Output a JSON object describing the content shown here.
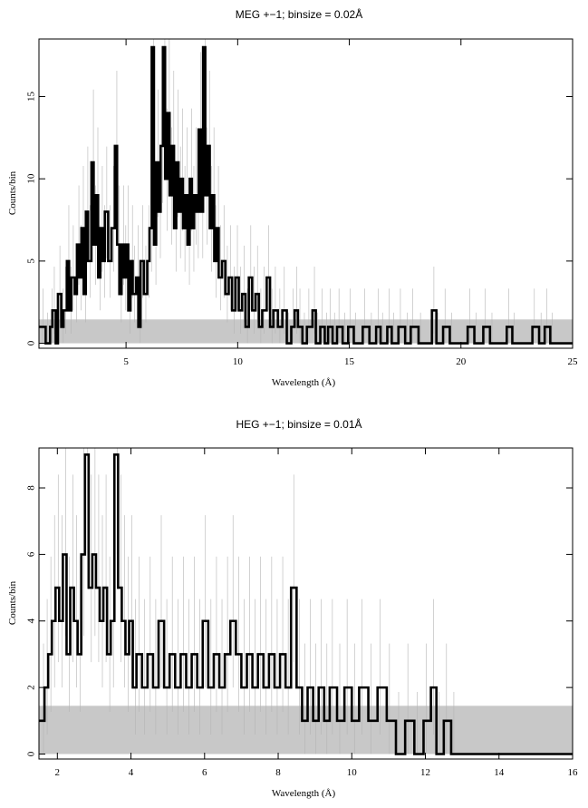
{
  "chart_data": [
    {
      "type": "line",
      "title": "MEG +−1; binsize = 0.02Å",
      "xlabel": "Wavelength (Å)",
      "ylabel": "Counts/bin",
      "xlim": [
        1.1,
        25
      ],
      "ylim": [
        -0.3,
        18.5
      ],
      "xticks": [
        5,
        10,
        15,
        20,
        25
      ],
      "yticks": [
        0,
        5,
        10,
        15
      ],
      "grid": false,
      "legend": "none",
      "colors": {
        "data": "#000000",
        "background": "#c8c8c8",
        "errors": "#b4b4b4"
      },
      "background_band": {
        "low": 0,
        "high": 1.45
      },
      "series": [
        {
          "values": [
            [
              1.2,
              1
            ],
            [
              1.4,
              0
            ],
            [
              1.6,
              1
            ],
            [
              1.7,
              2
            ],
            [
              1.85,
              0
            ],
            [
              1.95,
              3
            ],
            [
              2.1,
              1
            ],
            [
              2.2,
              2
            ],
            [
              2.35,
              5
            ],
            [
              2.45,
              2
            ],
            [
              2.55,
              4
            ],
            [
              2.7,
              3
            ],
            [
              2.8,
              6
            ],
            [
              2.9,
              4
            ],
            [
              3.0,
              7
            ],
            [
              3.1,
              3
            ],
            [
              3.2,
              8
            ],
            [
              3.3,
              5
            ],
            [
              3.45,
              11
            ],
            [
              3.55,
              6
            ],
            [
              3.65,
              9
            ],
            [
              3.75,
              4
            ],
            [
              3.85,
              7
            ],
            [
              3.95,
              5
            ],
            [
              4.05,
              8
            ],
            [
              4.2,
              5
            ],
            [
              4.35,
              7
            ],
            [
              4.5,
              12
            ],
            [
              4.6,
              6
            ],
            [
              4.7,
              3
            ],
            [
              4.8,
              6
            ],
            [
              4.9,
              4
            ],
            [
              5.0,
              6
            ],
            [
              5.1,
              2
            ],
            [
              5.2,
              5
            ],
            [
              5.3,
              3
            ],
            [
              5.45,
              4
            ],
            [
              5.55,
              1
            ],
            [
              5.65,
              5
            ],
            [
              5.8,
              3
            ],
            [
              5.95,
              5
            ],
            [
              6.05,
              7
            ],
            [
              6.15,
              18
            ],
            [
              6.25,
              6
            ],
            [
              6.35,
              11
            ],
            [
              6.45,
              8
            ],
            [
              6.55,
              12
            ],
            [
              6.65,
              18
            ],
            [
              6.75,
              10
            ],
            [
              6.85,
              14
            ],
            [
              6.95,
              9
            ],
            [
              7.05,
              12
            ],
            [
              7.15,
              7
            ],
            [
              7.25,
              11
            ],
            [
              7.35,
              8
            ],
            [
              7.45,
              10
            ],
            [
              7.55,
              7
            ],
            [
              7.65,
              9
            ],
            [
              7.75,
              6
            ],
            [
              7.85,
              10
            ],
            [
              7.95,
              7
            ],
            [
              8.05,
              9
            ],
            [
              8.15,
              8
            ],
            [
              8.25,
              13
            ],
            [
              8.35,
              8
            ],
            [
              8.45,
              18
            ],
            [
              8.55,
              9
            ],
            [
              8.65,
              12
            ],
            [
              8.75,
              7
            ],
            [
              8.85,
              9
            ],
            [
              8.95,
              5
            ],
            [
              9.05,
              7
            ],
            [
              9.15,
              4
            ],
            [
              9.3,
              5
            ],
            [
              9.45,
              3
            ],
            [
              9.6,
              4
            ],
            [
              9.75,
              2
            ],
            [
              9.9,
              4
            ],
            [
              10.05,
              2
            ],
            [
              10.2,
              3
            ],
            [
              10.35,
              1
            ],
            [
              10.5,
              4
            ],
            [
              10.65,
              2
            ],
            [
              10.8,
              3
            ],
            [
              10.95,
              1
            ],
            [
              11.1,
              2
            ],
            [
              11.3,
              4
            ],
            [
              11.45,
              1
            ],
            [
              11.6,
              2
            ],
            [
              11.8,
              1
            ],
            [
              12.0,
              2
            ],
            [
              12.2,
              0
            ],
            [
              12.4,
              1
            ],
            [
              12.55,
              2
            ],
            [
              12.7,
              1
            ],
            [
              12.9,
              0
            ],
            [
              13.1,
              1
            ],
            [
              13.35,
              2
            ],
            [
              13.5,
              0
            ],
            [
              13.7,
              1
            ],
            [
              13.9,
              0
            ],
            [
              14.05,
              1
            ],
            [
              14.25,
              0
            ],
            [
              14.45,
              1
            ],
            [
              14.7,
              0
            ],
            [
              14.95,
              1
            ],
            [
              15.2,
              0
            ],
            [
              15.6,
              1
            ],
            [
              15.9,
              0
            ],
            [
              16.2,
              1
            ],
            [
              16.4,
              0
            ],
            [
              16.7,
              1
            ],
            [
              16.9,
              0
            ],
            [
              17.2,
              1
            ],
            [
              17.5,
              0
            ],
            [
              17.75,
              1
            ],
            [
              18.1,
              0
            ],
            [
              18.7,
              2
            ],
            [
              18.9,
              0
            ],
            [
              19.2,
              1
            ],
            [
              19.5,
              0
            ],
            [
              20.3,
              1
            ],
            [
              20.6,
              0
            ],
            [
              21.0,
              1
            ],
            [
              21.3,
              0
            ],
            [
              22.05,
              1
            ],
            [
              22.3,
              0
            ],
            [
              23.2,
              1
            ],
            [
              23.5,
              0
            ],
            [
              23.75,
              1
            ],
            [
              24.0,
              0
            ]
          ]
        }
      ]
    },
    {
      "type": "line",
      "title": "HEG +−1; binsize = 0.01Å",
      "xlabel": "Wavelength (Å)",
      "ylabel": "Counts/bin",
      "xlim": [
        1.5,
        16
      ],
      "ylim": [
        -0.15,
        9.2
      ],
      "xticks": [
        2,
        4,
        6,
        8,
        10,
        12,
        14,
        16
      ],
      "yticks": [
        0,
        2,
        4,
        6,
        8
      ],
      "grid": false,
      "legend": "none",
      "colors": {
        "data": "#000000",
        "background": "#c8c8c8",
        "errors": "#b4b4b4"
      },
      "background_band": {
        "low": 0,
        "high": 1.45
      },
      "series": [
        {
          "values": [
            [
              1.55,
              1
            ],
            [
              1.65,
              2
            ],
            [
              1.75,
              3
            ],
            [
              1.85,
              4
            ],
            [
              1.95,
              5
            ],
            [
              2.05,
              4
            ],
            [
              2.15,
              6
            ],
            [
              2.25,
              3
            ],
            [
              2.35,
              5
            ],
            [
              2.45,
              4
            ],
            [
              2.55,
              3
            ],
            [
              2.65,
              6
            ],
            [
              2.75,
              9
            ],
            [
              2.85,
              5
            ],
            [
              2.95,
              6
            ],
            [
              3.05,
              5
            ],
            [
              3.15,
              4
            ],
            [
              3.25,
              5
            ],
            [
              3.35,
              3
            ],
            [
              3.45,
              4
            ],
            [
              3.55,
              9
            ],
            [
              3.65,
              5
            ],
            [
              3.75,
              4
            ],
            [
              3.85,
              3
            ],
            [
              3.95,
              4
            ],
            [
              4.05,
              2
            ],
            [
              4.15,
              3
            ],
            [
              4.3,
              2
            ],
            [
              4.45,
              3
            ],
            [
              4.6,
              2
            ],
            [
              4.75,
              4
            ],
            [
              4.9,
              2
            ],
            [
              5.05,
              3
            ],
            [
              5.2,
              2
            ],
            [
              5.35,
              3
            ],
            [
              5.5,
              2
            ],
            [
              5.65,
              3
            ],
            [
              5.8,
              2
            ],
            [
              5.95,
              4
            ],
            [
              6.1,
              2
            ],
            [
              6.25,
              3
            ],
            [
              6.4,
              2
            ],
            [
              6.55,
              3
            ],
            [
              6.7,
              4
            ],
            [
              6.85,
              3
            ],
            [
              7.0,
              2
            ],
            [
              7.15,
              3
            ],
            [
              7.3,
              2
            ],
            [
              7.45,
              3
            ],
            [
              7.6,
              2
            ],
            [
              7.75,
              3
            ],
            [
              7.9,
              2
            ],
            [
              8.05,
              3
            ],
            [
              8.2,
              2
            ],
            [
              8.35,
              5
            ],
            [
              8.5,
              2
            ],
            [
              8.65,
              1
            ],
            [
              8.8,
              2
            ],
            [
              8.95,
              1
            ],
            [
              9.1,
              2
            ],
            [
              9.25,
              1
            ],
            [
              9.4,
              2
            ],
            [
              9.6,
              1
            ],
            [
              9.8,
              2
            ],
            [
              10.0,
              1
            ],
            [
              10.2,
              2
            ],
            [
              10.45,
              1
            ],
            [
              10.7,
              2
            ],
            [
              10.95,
              1
            ],
            [
              11.2,
              0
            ],
            [
              11.45,
              1
            ],
            [
              11.7,
              0
            ],
            [
              11.95,
              1
            ],
            [
              12.15,
              2
            ],
            [
              12.3,
              0
            ],
            [
              12.5,
              1
            ],
            [
              12.7,
              0
            ]
          ]
        }
      ]
    }
  ]
}
